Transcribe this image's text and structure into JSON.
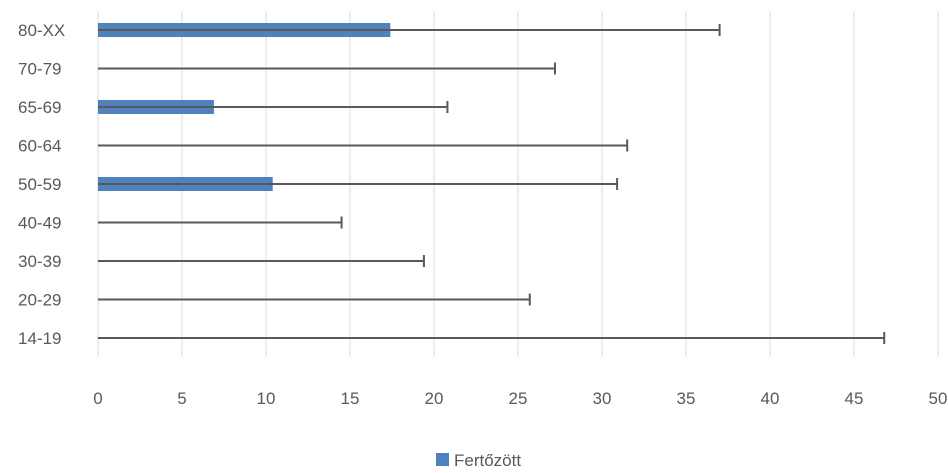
{
  "chart_data": {
    "type": "bar",
    "orientation": "horizontal",
    "title": "",
    "xlabel": "",
    "ylabel": "",
    "categories": [
      "80-XX",
      "70-79",
      "65-69",
      "60-64",
      "50-59",
      "40-49",
      "30-39",
      "20-29",
      "14-19"
    ],
    "series": [
      {
        "name": "Fertőzött",
        "color": "#4F81BD",
        "values": [
          17.4,
          0,
          6.9,
          0,
          10.4,
          0,
          0,
          0,
          0
        ],
        "error_upper": [
          37.0,
          27.2,
          20.8,
          31.5,
          30.9,
          14.5,
          19.4,
          25.7,
          46.8
        ]
      }
    ],
    "xlim": [
      0,
      50
    ],
    "xticks": [
      0,
      5,
      10,
      15,
      20,
      25,
      30,
      35,
      40,
      45,
      50
    ],
    "grid": "vertical",
    "legend": "bottom"
  }
}
